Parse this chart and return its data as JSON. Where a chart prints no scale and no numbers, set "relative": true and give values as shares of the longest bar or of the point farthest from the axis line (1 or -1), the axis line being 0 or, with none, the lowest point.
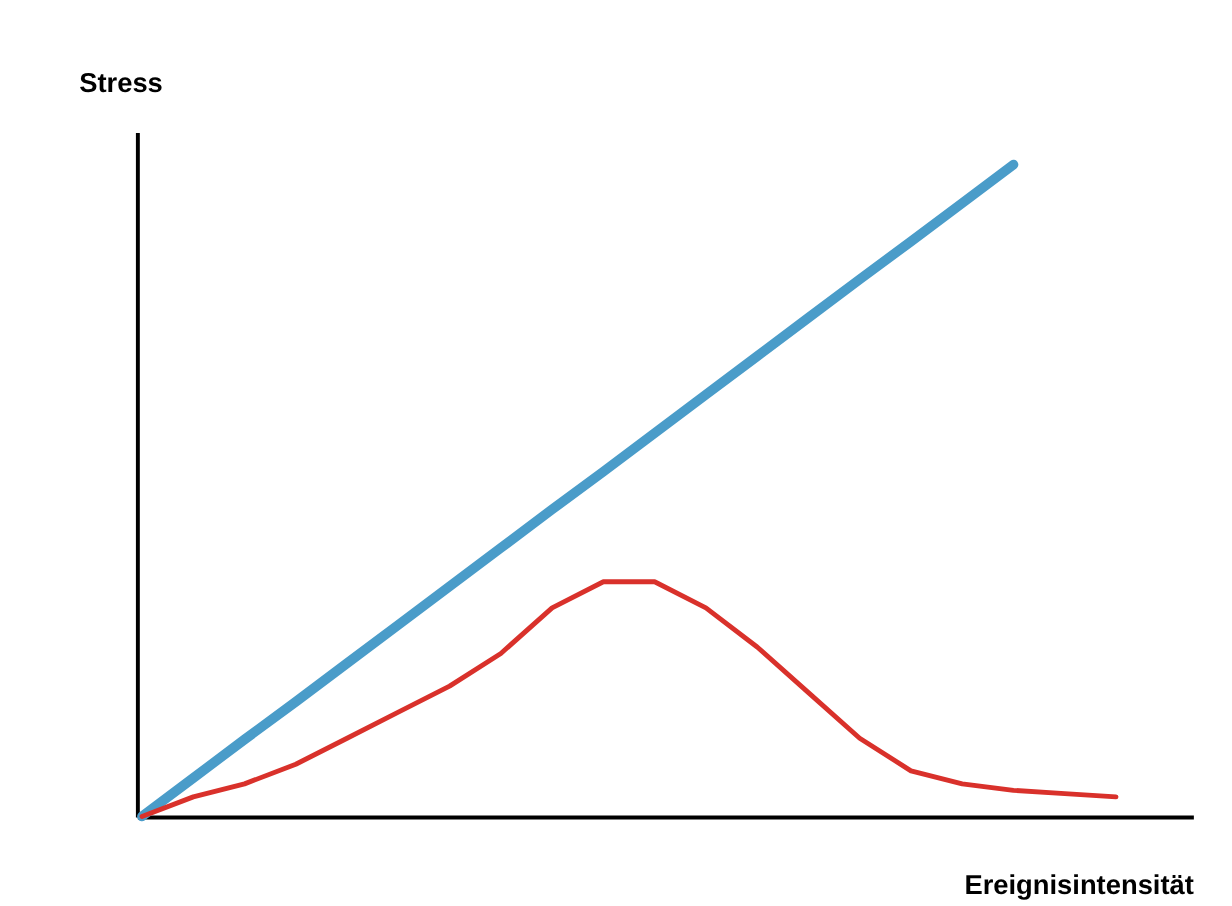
{
  "chart_data": {
    "type": "line",
    "relative": true,
    "xlabel": "Ereignisintensität",
    "ylabel": "Stress",
    "categories": [
      null,
      null,
      null,
      null,
      null,
      null,
      null,
      null,
      null,
      null,
      null,
      null,
      null,
      null,
      null,
      null,
      null,
      null,
      null,
      null
    ],
    "series": [
      {
        "color": "#4a9cc9",
        "values": [
          0,
          0.059,
          0.118,
          0.176,
          0.235,
          0.294,
          0.353,
          0.412,
          0.471,
          0.529,
          0.588,
          0.647,
          0.706,
          0.765,
          0.824,
          0.882,
          0.941,
          1.0,
          null,
          null
        ]
      },
      {
        "color": "#d9312b",
        "values": [
          0,
          0.03,
          0.05,
          0.08,
          0.12,
          0.16,
          0.2,
          0.25,
          0.32,
          0.36,
          0.36,
          0.32,
          0.26,
          0.19,
          0.12,
          0.07,
          0.05,
          0.04,
          0.035,
          0.03
        ]
      }
    ]
  }
}
